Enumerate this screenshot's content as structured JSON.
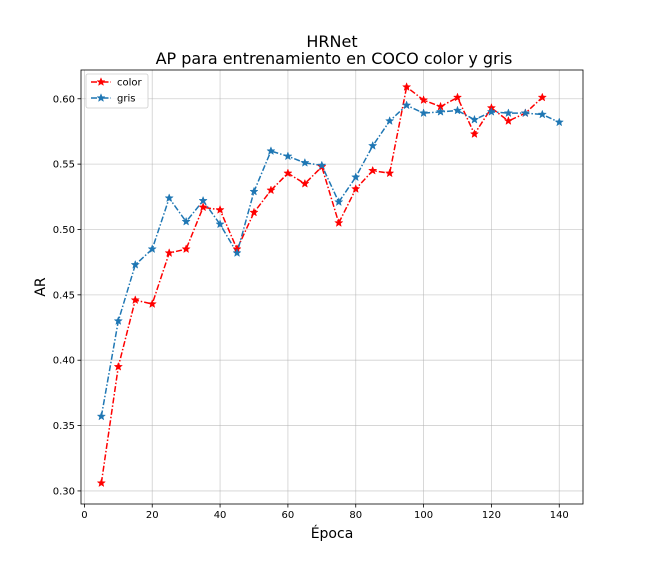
{
  "chart_data": {
    "type": "line",
    "title": "HRNet",
    "subtitle": "AP para entrenamiento en COCO color y gris",
    "xlabel": "Época",
    "ylabel": "AR",
    "xlim": [
      -1,
      147
    ],
    "ylim": [
      0.29,
      0.622
    ],
    "xticks": [
      0,
      20,
      40,
      60,
      80,
      100,
      120,
      140
    ],
    "yticks": [
      0.3,
      0.35,
      0.4,
      0.45,
      0.5,
      0.55,
      0.6
    ],
    "xtick_labels": [
      "0",
      "20",
      "40",
      "60",
      "80",
      "100",
      "120",
      "140"
    ],
    "ytick_labels": [
      "0.30",
      "0.35",
      "0.40",
      "0.45",
      "0.50",
      "0.55",
      "0.60"
    ],
    "grid": true,
    "legend_position": "top-left",
    "series": [
      {
        "name": "color",
        "color": "#ff0000",
        "linestyle": "dashdot",
        "marker": "star",
        "x": [
          5,
          10,
          15,
          20,
          25,
          30,
          35,
          40,
          45,
          50,
          55,
          60,
          65,
          70,
          75,
          80,
          85,
          90,
          95,
          100,
          105,
          110,
          115,
          120,
          125,
          130,
          135
        ],
        "y": [
          0.306,
          0.395,
          0.446,
          0.443,
          0.482,
          0.485,
          0.517,
          0.515,
          0.485,
          0.513,
          0.53,
          0.543,
          0.535,
          0.548,
          0.505,
          0.531,
          0.545,
          0.543,
          0.609,
          0.599,
          0.594,
          0.601,
          0.573,
          0.593,
          0.583,
          0.589,
          0.601
        ]
      },
      {
        "name": "gris",
        "color": "#1f77b4",
        "linestyle": "dashdot",
        "marker": "star",
        "x": [
          5,
          10,
          15,
          20,
          25,
          30,
          35,
          40,
          45,
          50,
          55,
          60,
          65,
          70,
          75,
          80,
          85,
          90,
          95,
          100,
          105,
          110,
          115,
          120,
          125,
          130,
          135,
          140
        ],
        "y": [
          0.357,
          0.43,
          0.473,
          0.485,
          0.524,
          0.506,
          0.522,
          0.504,
          0.482,
          0.529,
          0.56,
          0.556,
          0.551,
          0.549,
          0.521,
          0.54,
          0.564,
          0.583,
          0.595,
          0.589,
          0.59,
          0.591,
          0.584,
          0.59,
          0.589,
          0.589,
          0.588,
          0.582
        ]
      }
    ]
  }
}
